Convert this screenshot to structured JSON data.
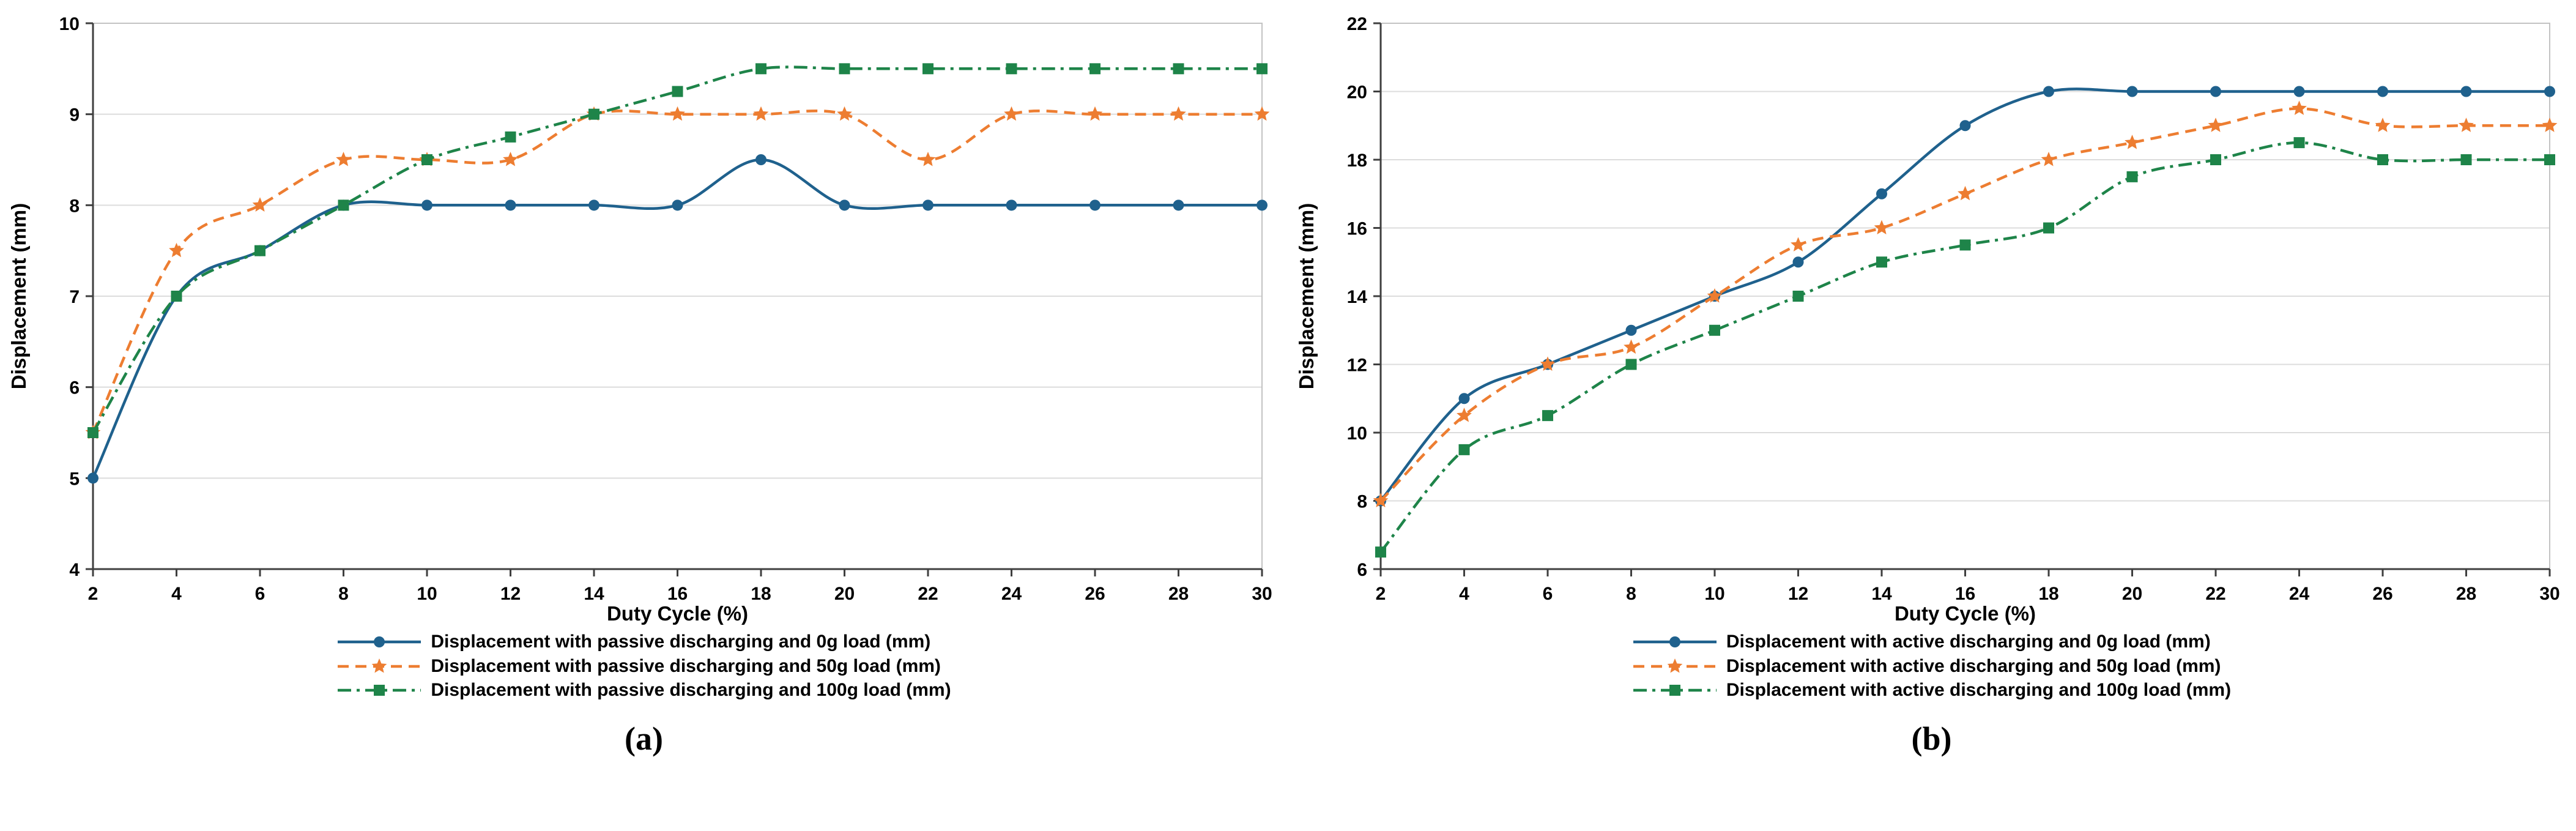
{
  "figures": [
    {
      "caption": "(a)"
    },
    {
      "caption": "(b)"
    }
  ],
  "chart_data": [
    {
      "type": "line",
      "title": "",
      "xlabel": "Duty Cycle (%)",
      "ylabel": "Displacement (mm)",
      "xlim": [
        2,
        30
      ],
      "ylim": [
        4,
        10
      ],
      "xtick_step": 2,
      "ytick_step": 1,
      "grid": "horizontal",
      "legend_position": "below",
      "x": [
        2,
        4,
        6,
        8,
        10,
        12,
        14,
        16,
        18,
        20,
        22,
        24,
        26,
        28,
        30
      ],
      "series": [
        {
          "name": "Displacement with passive discharging and 0g load (mm)",
          "color": "#1f618d",
          "dash": "solid",
          "marker": "circle",
          "values": [
            5.0,
            7.0,
            7.5,
            8.0,
            8.0,
            8.0,
            8.0,
            8.0,
            8.5,
            8.0,
            8.0,
            8.0,
            8.0,
            8.0,
            8.0
          ]
        },
        {
          "name": "Displacement with passive discharging and 50g load (mm)",
          "color": "#ed7d31",
          "dash": "dashed",
          "marker": "star",
          "values": [
            5.5,
            7.5,
            8.0,
            8.5,
            8.5,
            8.5,
            9.0,
            9.0,
            9.0,
            9.0,
            8.5,
            9.0,
            9.0,
            9.0,
            9.0
          ]
        },
        {
          "name": "Displacement with passive discharging and 100g load (mm)",
          "color": "#1e8449",
          "dash": "dashdot",
          "marker": "square",
          "values": [
            5.5,
            7.0,
            7.5,
            8.0,
            8.5,
            8.75,
            9.0,
            9.25,
            9.5,
            9.5,
            9.5,
            9.5,
            9.5,
            9.5,
            9.5
          ]
        }
      ]
    },
    {
      "type": "line",
      "title": "",
      "xlabel": "Duty Cycle (%)",
      "ylabel": "Displacement (mm)",
      "xlim": [
        2,
        30
      ],
      "ylim": [
        6,
        22
      ],
      "xtick_step": 2,
      "ytick_step": 2,
      "grid": "horizontal",
      "legend_position": "below",
      "x": [
        2,
        4,
        6,
        8,
        10,
        12,
        14,
        16,
        18,
        20,
        22,
        24,
        26,
        28,
        30
      ],
      "series": [
        {
          "name": "Displacement with active discharging and 0g load (mm)",
          "color": "#1f618d",
          "dash": "solid",
          "marker": "circle",
          "values": [
            8.0,
            11.0,
            12.0,
            13.0,
            14.0,
            15.0,
            17.0,
            19.0,
            20.0,
            20.0,
            20.0,
            20.0,
            20.0,
            20.0,
            20.0
          ]
        },
        {
          "name": "Displacement with active discharging and 50g load (mm)",
          "color": "#ed7d31",
          "dash": "dashed",
          "marker": "star",
          "values": [
            8.0,
            10.5,
            12.0,
            12.5,
            14.0,
            15.5,
            16.0,
            17.0,
            18.0,
            18.5,
            19.0,
            19.5,
            19.0,
            19.0,
            19.0
          ]
        },
        {
          "name": "Displacement with active discharging and 100g load (mm)",
          "color": "#1e8449",
          "dash": "dashdot",
          "marker": "square",
          "values": [
            6.5,
            9.5,
            10.5,
            12.0,
            13.0,
            14.0,
            15.0,
            15.5,
            16.0,
            17.5,
            18.0,
            18.5,
            18.0,
            18.0,
            18.0
          ]
        }
      ]
    }
  ]
}
